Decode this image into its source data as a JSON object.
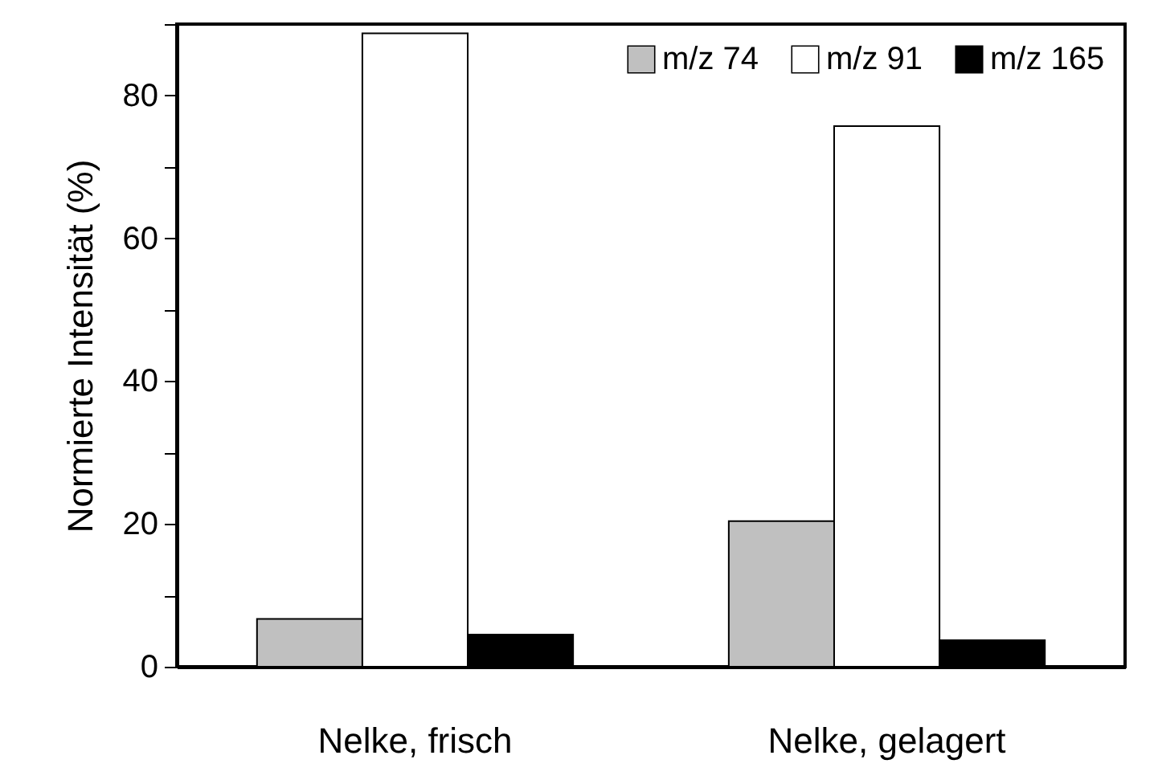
{
  "chart_data": {
    "type": "bar",
    "ylabel": "Normierte Intensität (%)",
    "categories": [
      "Nelke, frisch",
      "Nelke, gelagert"
    ],
    "series": [
      {
        "name": "m/z 74",
        "color": "#c0c0c0",
        "values": [
          6.7,
          20.4
        ]
      },
      {
        "name": "m/z 91",
        "color": "#ffffff",
        "values": [
          88.7,
          75.7
        ]
      },
      {
        "name": "m/z 165",
        "color": "#000000",
        "values": [
          4.5,
          3.7
        ]
      }
    ],
    "ylim": [
      0,
      90
    ],
    "yticks": [
      0,
      {
        "value": 10,
        "label": null
      },
      20,
      {
        "value": 30,
        "label": null
      },
      40,
      {
        "value": 50,
        "label": null
      },
      60,
      {
        "value": 70,
        "label": null
      },
      80,
      {
        "value": 90,
        "label": null
      }
    ],
    "legend": "top right"
  }
}
